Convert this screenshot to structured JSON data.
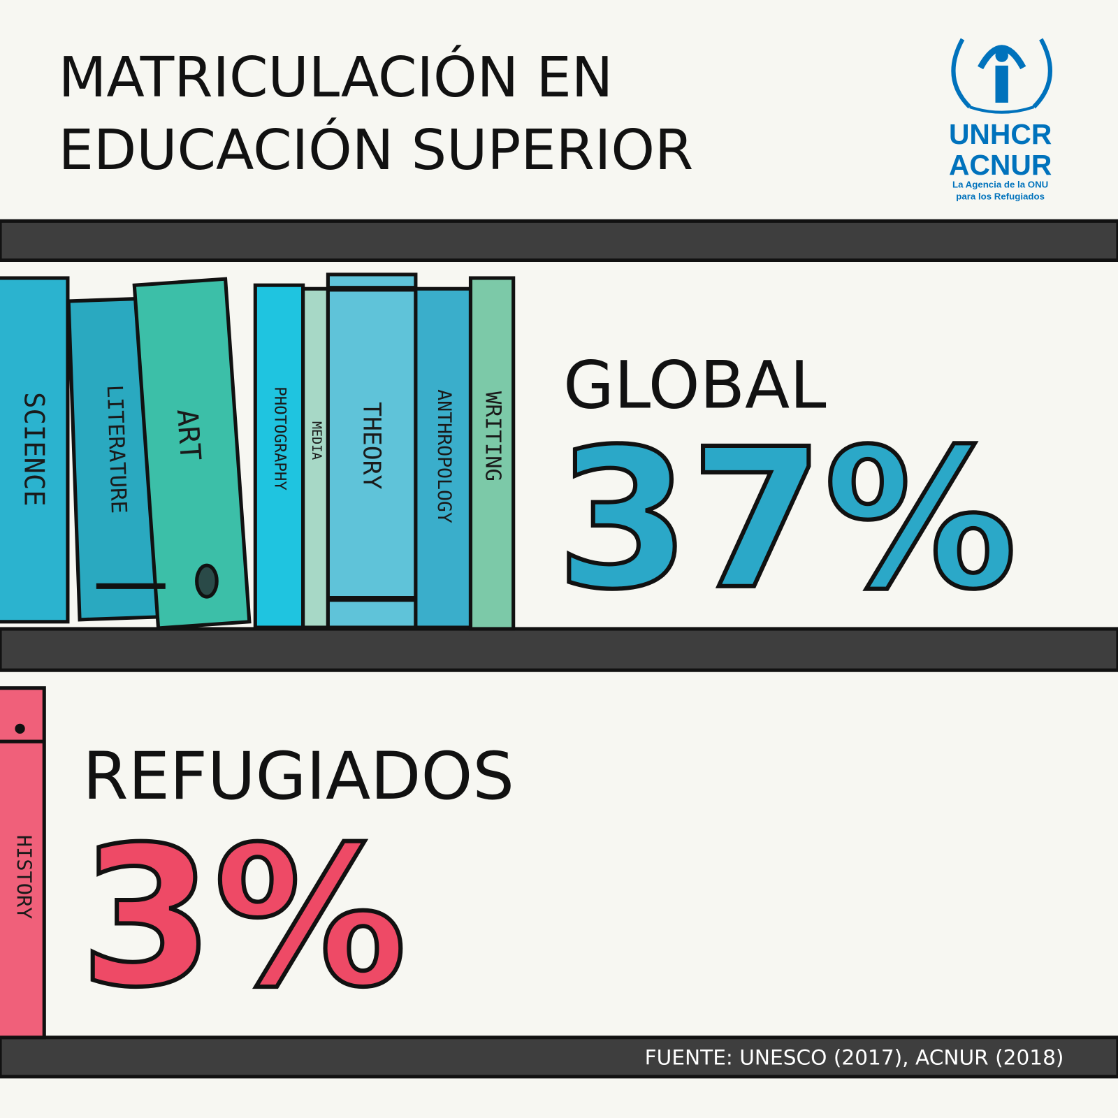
{
  "header": {
    "title_lines": [
      "MATRICULACIÓN EN",
      "EDUCACIÓN SUPERIOR"
    ]
  },
  "logo": {
    "name": "UNHCR",
    "name_es": "ACNUR",
    "tagline_lines": [
      "La Agencia de la ONU",
      "para los Refugiados"
    ]
  },
  "global": {
    "label": "GLOBAL",
    "value": "37%"
  },
  "refugees": {
    "label": "REFUGIADOS",
    "value": "3%"
  },
  "books": [
    "SCIENCE",
    "LITERATURE",
    "ART",
    "PHOTOGRAPHY",
    "MEDIA",
    "THEORY",
    "ANTHROPOLOGY",
    "WRITING",
    "HISTORY"
  ],
  "source": "FUENTE: UNESCO (2017), ACNUR (2018)"
}
